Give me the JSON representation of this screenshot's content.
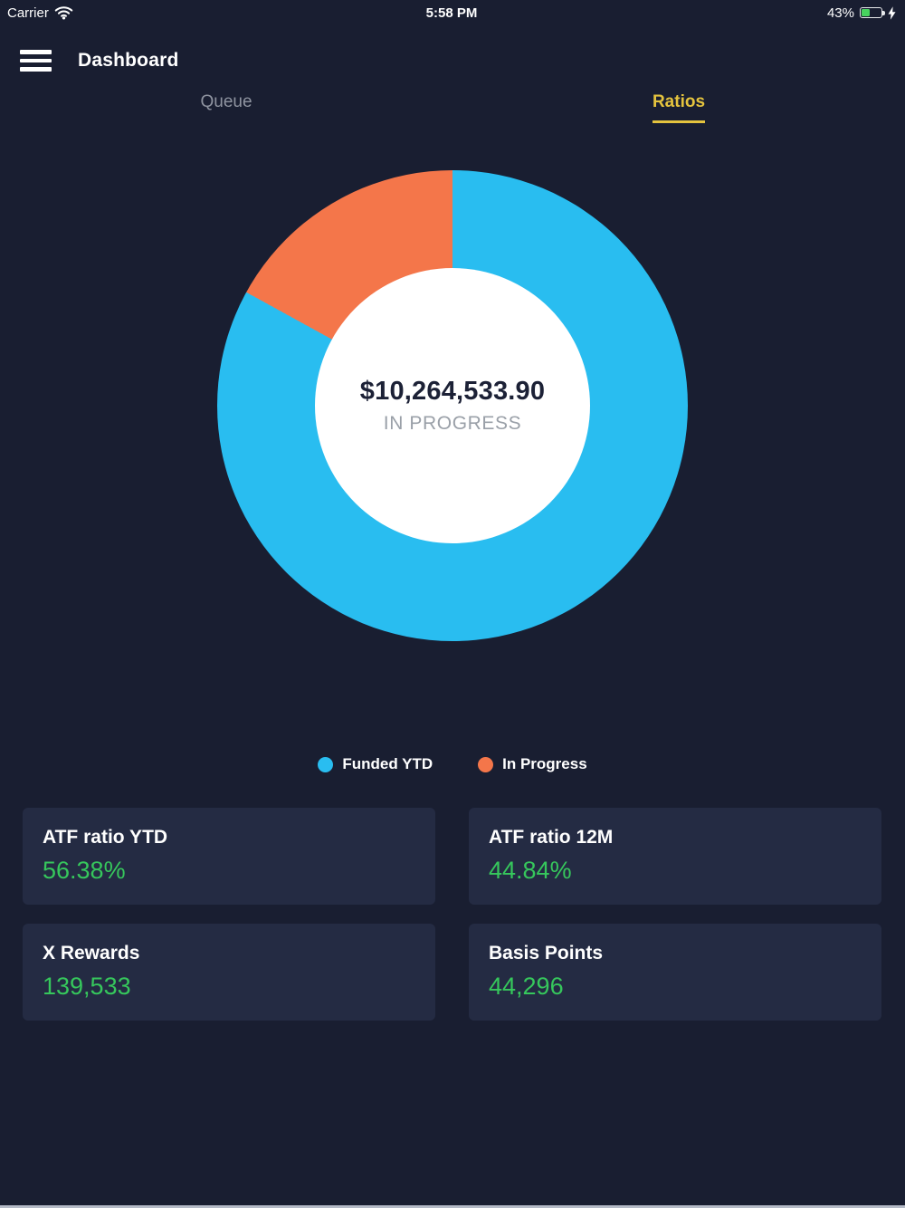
{
  "status_bar": {
    "carrier": "Carrier",
    "time": "5:58 PM",
    "battery_label": "43%",
    "battery_percent": 43
  },
  "header": {
    "title": "Dashboard"
  },
  "tabs": [
    {
      "label": "Queue",
      "active": false
    },
    {
      "label": "Ratios",
      "active": true
    }
  ],
  "chart_data": {
    "type": "pie",
    "subtype": "donut",
    "series": [
      {
        "name": "Funded YTD",
        "percent": 83,
        "color": "#29BDF0"
      },
      {
        "name": "In Progress",
        "percent": 17,
        "color": "#F4764A"
      }
    ],
    "center_label": {
      "value": "$10,264,533.90",
      "caption": "IN PROGRESS"
    },
    "legend_position": "bottom",
    "start_angle_deg": 0,
    "direction": "clockwise"
  },
  "stat_cards": [
    {
      "label": "ATF ratio YTD",
      "value": "56.38%"
    },
    {
      "label": "ATF ratio 12M",
      "value": "44.84%"
    },
    {
      "label": "X Rewards",
      "value": "139,533"
    },
    {
      "label": "Basis Points",
      "value": "44,296"
    }
  ],
  "colors": {
    "background": "#191E31",
    "card_background": "#242B43",
    "accent_blue": "#29BDF0",
    "accent_orange": "#F4764A",
    "value_green": "#36C75C",
    "tab_active_yellow": "#E4C33E",
    "tab_inactive_gray": "#8F94A0",
    "battery_green": "#47D35E"
  }
}
